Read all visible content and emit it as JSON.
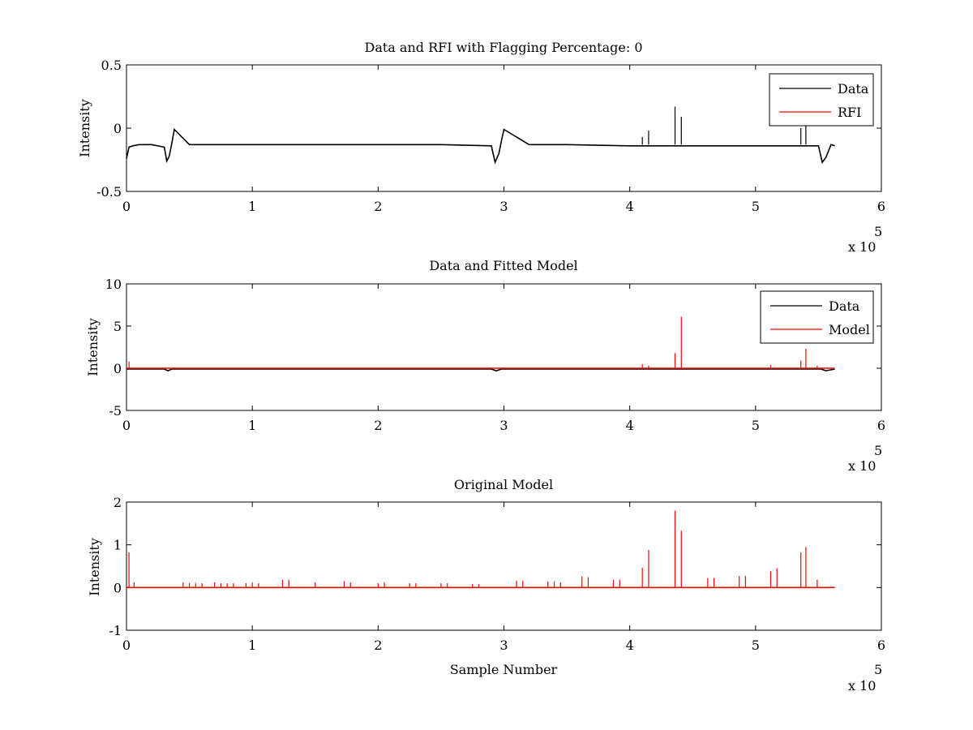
{
  "chart_data": [
    {
      "type": "line",
      "title": "Data and RFI with Flagging Percentage: 0",
      "xlabel": "",
      "ylabel": "Intensity",
      "xlim": [
        0,
        6
      ],
      "ylim": [
        -0.5,
        0.5
      ],
      "x_multiplier": "x 10",
      "x_multiplier_exp": "5",
      "xticks": [
        "0",
        "1",
        "2",
        "3",
        "4",
        "5",
        "6"
      ],
      "yticks": [
        "-0.5",
        "0",
        "0.5"
      ],
      "legend": {
        "placement": "top-right",
        "entries": [
          "Data",
          "RFI"
        ]
      },
      "series": [
        {
          "name": "Data",
          "color": "#000000",
          "x": [
            0,
            0.02,
            0.05,
            0.1,
            0.2,
            0.3,
            0.32,
            0.34,
            0.36,
            0.38,
            0.5,
            1.0,
            1.5,
            2.0,
            2.5,
            2.9,
            2.93,
            2.96,
            2.98,
            3.0,
            3.2,
            3.5,
            4.0,
            4.5,
            5.0,
            5.4,
            5.5,
            5.53,
            5.56,
            5.6,
            5.63
          ],
          "y": [
            -0.24,
            -0.15,
            -0.14,
            -0.13,
            -0.13,
            -0.15,
            -0.26,
            -0.22,
            -0.12,
            -0.01,
            -0.13,
            -0.13,
            -0.13,
            -0.13,
            -0.13,
            -0.14,
            -0.27,
            -0.2,
            -0.1,
            -0.01,
            -0.13,
            -0.13,
            -0.14,
            -0.14,
            -0.14,
            -0.14,
            -0.14,
            -0.27,
            -0.23,
            -0.13,
            -0.14
          ]
        },
        {
          "name": "RFI",
          "color": "#ff0000",
          "x": [],
          "y": []
        }
      ],
      "spikes": {
        "color": "#000000",
        "x": [
          4.1,
          4.15,
          4.36,
          4.41,
          5.36,
          5.4
        ],
        "y": [
          -0.07,
          -0.02,
          0.17,
          0.09,
          -0.0,
          0.06
        ],
        "base": -0.13
      }
    },
    {
      "type": "line",
      "title": "Data and Fitted Model",
      "xlabel": "",
      "ylabel": "Intensity",
      "xlim": [
        0,
        6
      ],
      "ylim": [
        -5,
        10
      ],
      "x_multiplier": "x 10",
      "x_multiplier_exp": "5",
      "xticks": [
        "0",
        "1",
        "2",
        "3",
        "4",
        "5",
        "6"
      ],
      "yticks": [
        "-5",
        "0",
        "5",
        "10"
      ],
      "legend": {
        "placement": "top-right",
        "entries": [
          "Data",
          "Model"
        ]
      },
      "series": [
        {
          "name": "Data",
          "color": "#000000",
          "x": [
            0,
            0.3,
            0.33,
            0.36,
            1.0,
            2.0,
            2.9,
            2.94,
            2.98,
            4.0,
            5.0,
            5.52,
            5.56,
            5.63
          ],
          "y": [
            -0.1,
            -0.1,
            -0.3,
            -0.1,
            -0.1,
            -0.1,
            -0.1,
            -0.3,
            -0.1,
            -0.1,
            -0.1,
            -0.1,
            -0.3,
            -0.1
          ]
        },
        {
          "name": "Model",
          "color": "#ff0000",
          "x": [
            0,
            5.63
          ],
          "y": [
            0,
            0
          ]
        }
      ],
      "spikes": {
        "color": "#ff0000",
        "x": [
          0.02,
          4.1,
          4.15,
          4.36,
          4.41,
          5.12,
          5.36,
          5.4,
          5.49
        ],
        "y": [
          0.8,
          0.5,
          0.3,
          1.8,
          6.1,
          0.4,
          0.9,
          2.3,
          0.3
        ],
        "base": 0
      }
    },
    {
      "type": "line",
      "title": "Original Model",
      "xlabel": "Sample Number",
      "ylabel": "Intensity",
      "xlim": [
        0,
        6
      ],
      "ylim": [
        -1,
        2
      ],
      "x_multiplier": "x 10",
      "x_multiplier_exp": "5",
      "xticks": [
        "0",
        "1",
        "2",
        "3",
        "4",
        "5",
        "6"
      ],
      "yticks": [
        "-1",
        "0",
        "1",
        "2"
      ],
      "series": [
        {
          "name": "Model",
          "color": "#ff0000",
          "x": [
            0,
            5.63
          ],
          "y": [
            0,
            0
          ]
        }
      ],
      "spikes": {
        "color": "#ff0000",
        "x": [
          0.02,
          0.06,
          0.45,
          0.5,
          0.55,
          0.6,
          0.7,
          0.75,
          0.8,
          0.85,
          0.95,
          1.0,
          1.05,
          1.24,
          1.29,
          1.5,
          1.73,
          1.78,
          2.0,
          2.05,
          2.25,
          2.3,
          2.5,
          2.55,
          2.75,
          2.8,
          3.1,
          3.15,
          3.35,
          3.4,
          3.45,
          3.62,
          3.67,
          3.87,
          3.92,
          4.1,
          4.15,
          4.36,
          4.41,
          4.62,
          4.67,
          4.87,
          4.92,
          5.12,
          5.17,
          5.36,
          5.4,
          5.49
        ],
        "y": [
          0.82,
          0.12,
          0.12,
          0.1,
          0.1,
          0.1,
          0.12,
          0.1,
          0.1,
          0.1,
          0.1,
          0.12,
          0.1,
          0.18,
          0.18,
          0.12,
          0.15,
          0.12,
          0.1,
          0.12,
          0.1,
          0.1,
          0.1,
          0.1,
          0.08,
          0.08,
          0.16,
          0.16,
          0.14,
          0.14,
          0.12,
          0.26,
          0.24,
          0.18,
          0.18,
          0.46,
          0.88,
          1.8,
          1.33,
          0.22,
          0.22,
          0.27,
          0.27,
          0.38,
          0.45,
          0.82,
          0.95,
          0.18
        ],
        "base": 0
      }
    }
  ]
}
